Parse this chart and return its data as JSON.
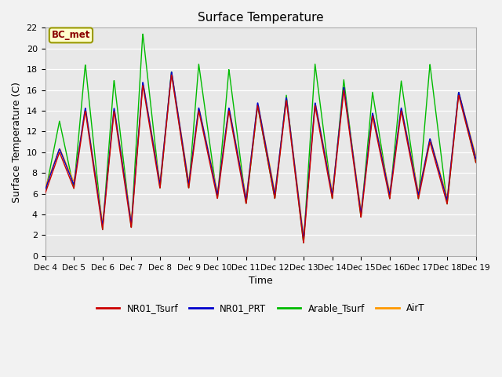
{
  "title": "Surface Temperature",
  "xlabel": "Time",
  "ylabel": "Surface Temperature (C)",
  "ylim": [
    0,
    22
  ],
  "n_days": 15,
  "background_color": "#f2f2f2",
  "plot_bg_color": "#e8e8e8",
  "series": {
    "NR01_Tsurf": {
      "color": "#cc0000",
      "lw": 1.0
    },
    "NR01_PRT": {
      "color": "#0000cc",
      "lw": 1.0
    },
    "Arable_Tsurf": {
      "color": "#00bb00",
      "lw": 1.0
    },
    "AirT": {
      "color": "#ff9900",
      "lw": 1.0
    }
  },
  "tick_labels": [
    "Dec 4",
    "Dec 5",
    "Dec 6",
    "Dec 7",
    "Dec 8",
    "Dec 9",
    "Dec 10",
    "Dec 11",
    "Dec 12",
    "Dec 13",
    "Dec 14",
    "Dec 15",
    "Dec 16",
    "Dec 17",
    "Dec 18",
    "Dec 19"
  ],
  "yticks": [
    0,
    2,
    4,
    6,
    8,
    10,
    12,
    14,
    16,
    18,
    20,
    22
  ],
  "legend_label": "BC_met",
  "legend_label_color": "#8b0000",
  "legend_label_bg": "#ffffcc",
  "legend_label_border": "#999900",
  "peaks": [
    {
      "day": 0.5,
      "base": 10,
      "green": 13
    },
    {
      "day": 1.4,
      "base": 14,
      "green": 18.5
    },
    {
      "day": 2.4,
      "base": 14,
      "green": 17
    },
    {
      "day": 3.4,
      "base": 16.5,
      "green": 21.5
    },
    {
      "day": 4.4,
      "base": 17.5,
      "green": 17.8
    },
    {
      "day": 5.35,
      "base": 14,
      "green": 18.5
    },
    {
      "day": 6.4,
      "base": 14,
      "green": 18
    },
    {
      "day": 7.4,
      "base": 14.5,
      "green": 14.5
    },
    {
      "day": 8.4,
      "base": 15,
      "green": 15.5
    },
    {
      "day": 9.4,
      "base": 14.5,
      "green": 18.5
    },
    {
      "day": 10.4,
      "base": 16,
      "green": 17
    },
    {
      "day": 11.4,
      "base": 13.5,
      "green": 15.8
    },
    {
      "day": 12.4,
      "base": 14,
      "green": 16.9
    },
    {
      "day": 13.4,
      "base": 11,
      "green": 18.5
    },
    {
      "day": 14.4,
      "base": 15.5,
      "green": 15.8
    }
  ],
  "troughs": [
    {
      "day": 0.0,
      "base": 6.0
    },
    {
      "day": 1.0,
      "base": 6.5
    },
    {
      "day": 2.0,
      "base": 2.5
    },
    {
      "day": 3.0,
      "base": 2.7
    },
    {
      "day": 4.0,
      "base": 6.5
    },
    {
      "day": 5.0,
      "base": 6.5
    },
    {
      "day": 6.0,
      "base": 5.5
    },
    {
      "day": 7.0,
      "base": 5.0
    },
    {
      "day": 8.0,
      "base": 5.5
    },
    {
      "day": 9.0,
      "base": 1.2
    },
    {
      "day": 10.0,
      "base": 5.5
    },
    {
      "day": 11.0,
      "base": 3.7
    },
    {
      "day": 12.0,
      "base": 5.5
    },
    {
      "day": 13.0,
      "base": 5.5
    },
    {
      "day": 14.0,
      "base": 5.0
    },
    {
      "day": 15.0,
      "base": 9.0
    }
  ]
}
